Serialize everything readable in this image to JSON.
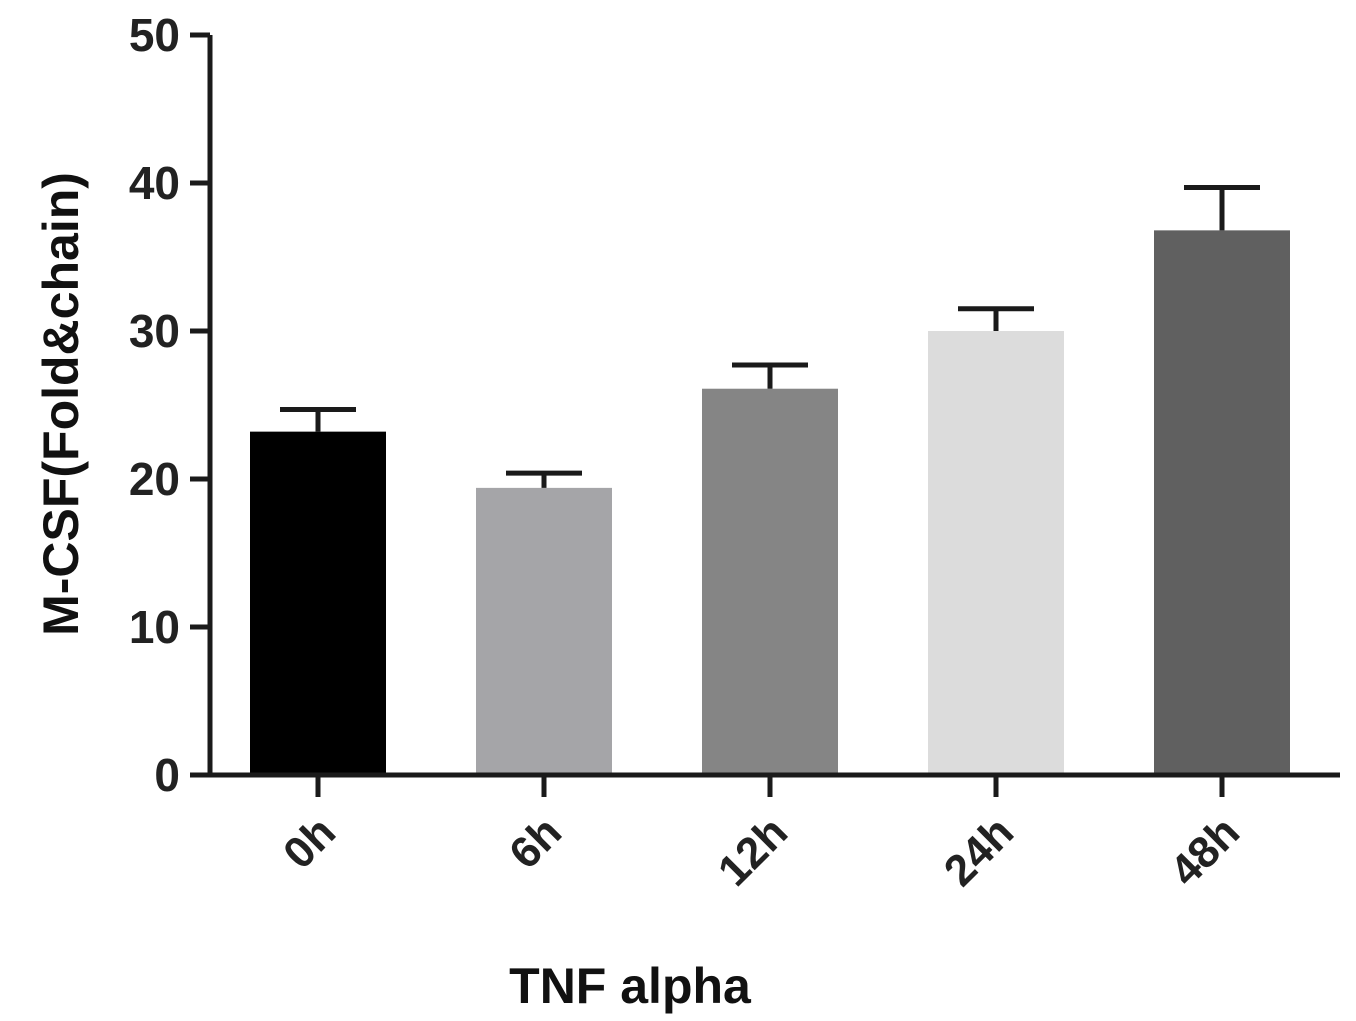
{
  "chart_data": {
    "type": "bar",
    "xlabel": "TNF alpha",
    "ylabel": "M-CSF(Fold&chain)",
    "ylim": [
      0,
      50
    ],
    "yticks": [
      0,
      10,
      20,
      30,
      40,
      50
    ],
    "ytick_labels": [
      "0",
      "10",
      "20",
      "30",
      "40",
      "50"
    ],
    "categories": [
      "0h",
      "6h",
      "12h",
      "24h",
      "48h"
    ],
    "values": [
      23.2,
      19.4,
      26.1,
      30.0,
      36.8
    ],
    "errors": [
      1.5,
      1.0,
      1.6,
      1.5,
      2.9
    ],
    "bar_colors": [
      "#000000",
      "#a5a5a8",
      "#858585",
      "#dcdcdc",
      "#606060"
    ],
    "grid": false,
    "legend": "none"
  }
}
